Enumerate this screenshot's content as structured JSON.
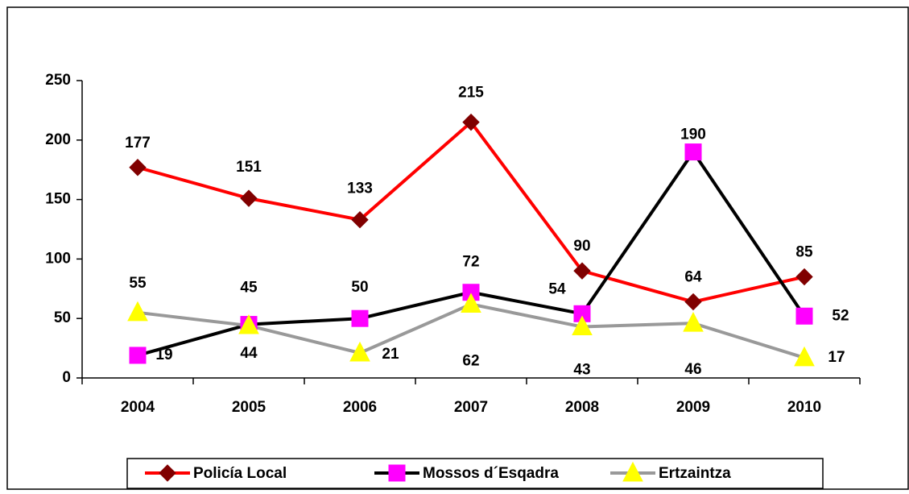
{
  "chart_data": {
    "type": "line",
    "categories": [
      "2004",
      "2005",
      "2006",
      "2007",
      "2008",
      "2009",
      "2010"
    ],
    "series": [
      {
        "name": "Policía Local",
        "color": "#ff0000",
        "marker_color": "#800000",
        "marker": "diamond",
        "values": [
          177,
          151,
          133,
          215,
          90,
          64,
          85
        ]
      },
      {
        "name": "Mossos d´Esqadra",
        "color": "#000000",
        "marker_color": "#ff00ff",
        "marker": "square",
        "values": [
          19,
          45,
          50,
          72,
          54,
          190,
          52
        ]
      },
      {
        "name": "Ertzaintza",
        "color": "#999999",
        "marker_color": "#ffff00",
        "marker": "triangle",
        "values": [
          55,
          44,
          21,
          62,
          43,
          46,
          17
        ]
      }
    ],
    "ylim": [
      0,
      250
    ],
    "yticks": [
      0,
      50,
      100,
      150,
      200,
      250
    ],
    "grid": false,
    "legend": "bottom"
  }
}
